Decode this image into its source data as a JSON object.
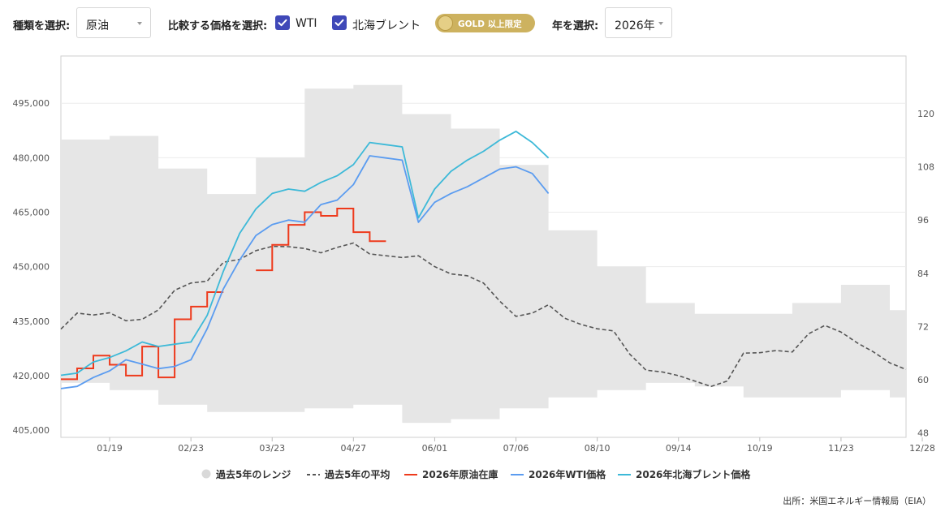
{
  "controls": {
    "type_label": "種類を選択:",
    "type_value": "原油",
    "compare_label": "比較する価格を選択:",
    "compare_options": [
      {
        "label": "WTI",
        "checked": true
      },
      {
        "label": "北海ブレント",
        "checked": true
      }
    ],
    "gold_badge": "GOLD 以上限定",
    "year_label": "年を選択:",
    "year_value": "2026年"
  },
  "colors": {
    "range": "#e6e6e6",
    "avg": "#555555",
    "inventory": "#ee3a1c",
    "wti": "#5b9cf0",
    "brent": "#3db9d8",
    "checkbox": "#3f48b8",
    "gold": "#cdb25f"
  },
  "chart_data": {
    "type": "line",
    "x_ticks": [
      "01/19",
      "02/23",
      "03/23",
      "04/27",
      "06/01",
      "07/06",
      "08/10",
      "09/14",
      "10/19",
      "11/23",
      "12/28"
    ],
    "y_left": {
      "ticks": [
        "405,000",
        "420,000",
        "435,000",
        "450,000",
        "465,000",
        "480,000",
        "495,000"
      ],
      "range": [
        403000,
        508000
      ]
    },
    "y_right": {
      "ticks": [
        "48",
        "60",
        "72",
        "84",
        "96",
        "108",
        "120"
      ],
      "range": [
        47,
        133
      ]
    },
    "grid": true,
    "legend_position": "bottom",
    "series": [
      {
        "name": "過去5年のレンジ",
        "kind": "band",
        "axis": "left",
        "x": [
          0,
          3,
          6,
          9,
          12,
          15,
          18,
          21,
          24,
          27,
          30,
          33,
          36,
          39,
          42,
          45,
          48,
          51,
          52
        ],
        "low": [
          418000,
          416000,
          412000,
          410000,
          410000,
          411000,
          412000,
          407000,
          408000,
          411000,
          414000,
          416000,
          418000,
          417000,
          414000,
          414000,
          416000,
          414000,
          414000
        ],
        "high": [
          485000,
          486000,
          477000,
          470000,
          480000,
          499000,
          500000,
          492000,
          488000,
          478000,
          460000,
          450000,
          440000,
          437000,
          437000,
          440000,
          445000,
          438000,
          430000
        ]
      },
      {
        "name": "過去5年の平均",
        "kind": "dashed",
        "axis": "left",
        "x": [
          0,
          1,
          2,
          3,
          4,
          5,
          6,
          7,
          8,
          9,
          10,
          11,
          12,
          13,
          14,
          15,
          16,
          17,
          18,
          19,
          20,
          21,
          22,
          23,
          24,
          25,
          26,
          27,
          28,
          29,
          30,
          31,
          32,
          33,
          34,
          35,
          36,
          37,
          38,
          39,
          40,
          41,
          42,
          43,
          44,
          45,
          46,
          47,
          48,
          49,
          50,
          51,
          52
        ],
        "values": [
          432800,
          437200,
          436700,
          437300,
          435100,
          435500,
          438100,
          443500,
          445500,
          446000,
          451200,
          452000,
          454400,
          455600,
          455500,
          455000,
          453800,
          455300,
          456500,
          453500,
          453000,
          452500,
          453000,
          450000,
          448000,
          447500,
          445500,
          440500,
          436300,
          437200,
          439500,
          435800,
          434100,
          432900,
          432300,
          425900,
          421500,
          421000,
          420000,
          418500,
          417000,
          418500,
          426200,
          426300,
          426900,
          426500,
          431500,
          433800,
          432000,
          429000,
          426500,
          423500,
          421700
        ]
      },
      {
        "name": "2026年原油在庫",
        "kind": "step",
        "axis": "left",
        "x": [
          0,
          1,
          2,
          3,
          4,
          5,
          6,
          7,
          8,
          9,
          10,
          11,
          12,
          13,
          14,
          15,
          16,
          17,
          18,
          19,
          20,
          21
        ],
        "values": [
          419000,
          422000,
          425500,
          423000,
          420000,
          428000,
          419500,
          435500,
          439000,
          443000,
          null,
          null,
          449000,
          456000,
          461500,
          465000,
          464000,
          466000,
          459500,
          457000,
          null,
          null
        ]
      },
      {
        "name": "2026年WTI価格",
        "kind": "line",
        "axis": "right",
        "x": [
          0,
          1,
          2,
          3,
          4,
          5,
          6,
          7,
          8,
          9,
          10,
          11,
          12,
          13,
          14,
          15,
          16,
          17,
          18,
          19,
          20,
          21,
          22,
          23,
          24,
          25,
          26,
          27,
          28,
          29,
          30
        ],
        "values": [
          58.0,
          58.5,
          60.5,
          62.0,
          64.5,
          63.5,
          62.5,
          63.0,
          64.5,
          71.5,
          80.5,
          87.0,
          92.5,
          95.0,
          96.0,
          95.5,
          99.5,
          100.5,
          104.0,
          110.5,
          110.0,
          109.5,
          95.5,
          100.0,
          102.0,
          103.5,
          105.5,
          107.5,
          108.0,
          106.5,
          102.0
        ]
      },
      {
        "name": "2026年北海ブレント価格",
        "kind": "line",
        "axis": "right",
        "x": [
          0,
          1,
          2,
          3,
          4,
          5,
          6,
          7,
          8,
          9,
          10,
          11,
          12,
          13,
          14,
          15,
          16,
          17,
          18,
          19,
          20,
          21,
          22,
          23,
          24,
          25,
          26,
          27,
          28,
          29,
          30
        ],
        "values": [
          61.0,
          61.5,
          64.0,
          65.0,
          66.5,
          68.5,
          67.5,
          68.0,
          68.5,
          74.5,
          84.5,
          93.0,
          98.5,
          102.0,
          103.0,
          102.5,
          104.5,
          106.0,
          108.5,
          113.5,
          113.0,
          112.5,
          96.5,
          103.0,
          107.0,
          109.5,
          111.5,
          114.0,
          116.0,
          113.5,
          110.0
        ]
      }
    ]
  },
  "legend": [
    {
      "label": "過去5年のレンジ"
    },
    {
      "label": "過去5年の平均"
    },
    {
      "label": "2026年原油在庫"
    },
    {
      "label": "2026年WTI価格"
    },
    {
      "label": "2026年北海ブレント価格"
    }
  ],
  "source": "出所：米国エネルギー情報局（EIA）"
}
